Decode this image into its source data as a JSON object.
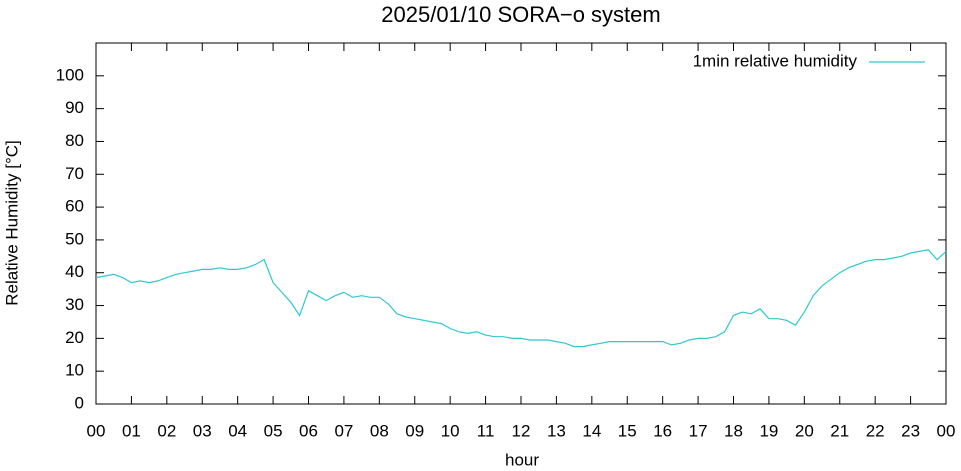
{
  "chart_data": {
    "type": "line",
    "title": "2025/01/10 SORA−o system",
    "xlabel": "hour",
    "ylabel": "Relative Humidity [°C]",
    "legend": "top-right",
    "x": [
      0,
      0.25,
      0.5,
      0.75,
      1,
      1.25,
      1.5,
      1.75,
      2,
      2.25,
      2.5,
      2.75,
      3,
      3.25,
      3.5,
      3.75,
      4,
      4.25,
      4.5,
      4.75,
      5,
      5.25,
      5.5,
      5.75,
      6,
      6.25,
      6.5,
      6.75,
      7,
      7.25,
      7.5,
      7.75,
      8,
      8.25,
      8.5,
      8.75,
      9,
      9.25,
      9.5,
      9.75,
      10,
      10.25,
      10.5,
      10.75,
      11,
      11.25,
      11.5,
      11.75,
      12,
      12.25,
      12.5,
      12.75,
      13,
      13.25,
      13.5,
      13.75,
      14,
      14.25,
      14.5,
      14.75,
      15,
      15.25,
      15.5,
      15.75,
      16,
      16.25,
      16.5,
      16.75,
      17,
      17.25,
      17.5,
      17.75,
      18,
      18.25,
      18.5,
      18.75,
      19,
      19.25,
      19.5,
      19.75,
      20,
      20.25,
      20.5,
      20.75,
      21,
      21.25,
      21.5,
      21.75,
      22,
      22.25,
      22.5,
      22.75,
      23,
      23.25,
      23.5,
      23.75,
      24
    ],
    "series": [
      {
        "name": "1min relative humidity",
        "color": "#2ec8d0",
        "values": [
          38.5,
          39,
          39.5,
          38.5,
          37,
          37.5,
          37,
          37.5,
          38.5,
          39.5,
          40,
          40.5,
          41,
          41,
          41.5,
          41,
          41,
          41.5,
          42.5,
          44,
          37,
          34,
          31,
          27,
          34.5,
          33,
          31.5,
          33,
          34,
          32.5,
          33,
          32.5,
          32.5,
          30.5,
          27.5,
          26.5,
          26,
          25.5,
          25,
          24.5,
          23,
          22,
          21.5,
          22,
          21,
          20.5,
          20.5,
          20,
          20,
          19.5,
          19.5,
          19.5,
          19,
          18.5,
          17.5,
          17.5,
          18,
          18.5,
          19,
          19,
          19,
          19,
          19,
          19,
          19,
          18,
          18.5,
          19.5,
          20,
          20,
          20.5,
          22,
          27,
          28,
          27.5,
          29,
          26,
          26,
          25.5,
          24,
          28,
          33,
          36,
          38,
          40,
          41.5,
          42.5,
          43.5,
          44,
          44,
          44.5,
          45,
          46,
          46.5,
          47,
          44,
          46.5
        ]
      }
    ],
    "xlim": [
      0,
      24
    ],
    "xticks": [
      {
        "value": 0,
        "label": "00"
      },
      {
        "value": 1,
        "label": "01"
      },
      {
        "value": 2,
        "label": "02"
      },
      {
        "value": 3,
        "label": "03"
      },
      {
        "value": 4,
        "label": "04"
      },
      {
        "value": 5,
        "label": "05"
      },
      {
        "value": 6,
        "label": "06"
      },
      {
        "value": 7,
        "label": "07"
      },
      {
        "value": 8,
        "label": "08"
      },
      {
        "value": 9,
        "label": "09"
      },
      {
        "value": 10,
        "label": "10"
      },
      {
        "value": 11,
        "label": "11"
      },
      {
        "value": 12,
        "label": "12"
      },
      {
        "value": 13,
        "label": "13"
      },
      {
        "value": 14,
        "label": "14"
      },
      {
        "value": 15,
        "label": "15"
      },
      {
        "value": 16,
        "label": "16"
      },
      {
        "value": 17,
        "label": "17"
      },
      {
        "value": 18,
        "label": "18"
      },
      {
        "value": 19,
        "label": "19"
      },
      {
        "value": 20,
        "label": "20"
      },
      {
        "value": 21,
        "label": "21"
      },
      {
        "value": 22,
        "label": "22"
      },
      {
        "value": 23,
        "label": "23"
      },
      {
        "value": 24,
        "label": "00"
      }
    ],
    "ylim": [
      0,
      110
    ],
    "yticks": [
      0,
      10,
      20,
      30,
      40,
      50,
      60,
      70,
      80,
      90,
      100
    ]
  }
}
